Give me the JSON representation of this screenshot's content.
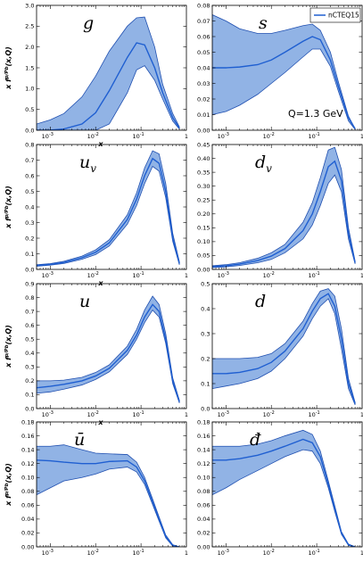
{
  "figure": {
    "legend": {
      "label": "nCTEQ15",
      "color": "#1f5fd1"
    },
    "annotation": "Q=1.3 GeV",
    "band_fill": "#7ea6e0",
    "band_edge": "#1f4fb0",
    "line_color": "#1f5fd1"
  },
  "chart_data": [
    {
      "type": "area",
      "panel": "g",
      "label": "g",
      "xlabel": "x",
      "ylabel": "x f^{p/Pb}(x,Q)",
      "xscale": "log",
      "xlim": [
        0.0005,
        1
      ],
      "ylim": [
        0,
        3.0
      ],
      "yticks": [
        0,
        0.5,
        1.0,
        1.5,
        2.0,
        2.5,
        3.0
      ],
      "yticklabels": [
        "0.0",
        "0.5",
        "1.0",
        "1.5",
        "2.0",
        "2.5",
        "3.0"
      ],
      "x": [
        0.0005,
        0.001,
        0.002,
        0.005,
        0.01,
        0.02,
        0.05,
        0.08,
        0.12,
        0.2,
        0.3,
        0.5,
        0.7
      ],
      "central": [
        0.0,
        0.005,
        0.03,
        0.15,
        0.42,
        0.95,
        1.75,
        2.1,
        2.05,
        1.5,
        0.9,
        0.3,
        0.05
      ],
      "upper": [
        0.15,
        0.25,
        0.4,
        0.8,
        1.3,
        1.9,
        2.5,
        2.7,
        2.72,
        2.0,
        1.1,
        0.4,
        0.08
      ],
      "lower": [
        0.0,
        0.0,
        0.0,
        0.0,
        0.0,
        0.15,
        0.9,
        1.45,
        1.55,
        1.2,
        0.75,
        0.22,
        0.03
      ]
    },
    {
      "type": "area",
      "panel": "s",
      "label": "s",
      "xlabel": "",
      "ylabel": "",
      "xscale": "log",
      "xlim": [
        0.0005,
        1
      ],
      "ylim": [
        0,
        0.08
      ],
      "yticks": [
        0,
        0.01,
        0.02,
        0.03,
        0.04,
        0.05,
        0.06,
        0.07,
        0.08
      ],
      "yticklabels": [
        "0.00",
        "0.01",
        "0.02",
        "0.03",
        "0.04",
        "0.05",
        "0.06",
        "0.07",
        "0.08"
      ],
      "x": [
        0.0005,
        0.001,
        0.002,
        0.005,
        0.01,
        0.02,
        0.05,
        0.08,
        0.12,
        0.2,
        0.3,
        0.5,
        0.7
      ],
      "central": [
        0.04,
        0.04,
        0.0405,
        0.042,
        0.045,
        0.05,
        0.057,
        0.06,
        0.058,
        0.045,
        0.028,
        0.008,
        0.001
      ],
      "upper": [
        0.074,
        0.07,
        0.065,
        0.062,
        0.062,
        0.064,
        0.067,
        0.068,
        0.064,
        0.05,
        0.031,
        0.009,
        0.001
      ],
      "lower": [
        0.01,
        0.012,
        0.016,
        0.023,
        0.03,
        0.037,
        0.047,
        0.052,
        0.052,
        0.041,
        0.025,
        0.006,
        0.0005
      ]
    },
    {
      "type": "area",
      "panel": "uv",
      "label": "u",
      "label_sub": "v",
      "xlabel": "x",
      "ylabel": "x f^{p/Pb}(x,Q)",
      "xscale": "log",
      "xlim": [
        0.0005,
        1
      ],
      "ylim": [
        0,
        0.8
      ],
      "yticks": [
        0,
        0.1,
        0.2,
        0.3,
        0.4,
        0.5,
        0.6,
        0.7,
        0.8
      ],
      "yticklabels": [
        "0.0",
        "0.1",
        "0.2",
        "0.3",
        "0.4",
        "0.5",
        "0.6",
        "0.7",
        "0.8"
      ],
      "x": [
        0.0005,
        0.001,
        0.002,
        0.005,
        0.01,
        0.02,
        0.05,
        0.08,
        0.12,
        0.18,
        0.25,
        0.35,
        0.5,
        0.7
      ],
      "central": [
        0.025,
        0.032,
        0.045,
        0.075,
        0.11,
        0.17,
        0.32,
        0.45,
        0.6,
        0.71,
        0.68,
        0.5,
        0.2,
        0.04
      ],
      "upper": [
        0.03,
        0.037,
        0.052,
        0.085,
        0.125,
        0.19,
        0.35,
        0.49,
        0.65,
        0.76,
        0.74,
        0.55,
        0.23,
        0.05
      ],
      "lower": [
        0.02,
        0.027,
        0.038,
        0.065,
        0.095,
        0.15,
        0.29,
        0.41,
        0.55,
        0.66,
        0.63,
        0.46,
        0.18,
        0.03
      ]
    },
    {
      "type": "area",
      "panel": "dv",
      "label": "d",
      "label_sub": "v",
      "xlabel": "",
      "ylabel": "",
      "xscale": "log",
      "xlim": [
        0.0005,
        1
      ],
      "ylim": [
        0,
        0.45
      ],
      "yticks": [
        0,
        0.05,
        0.1,
        0.15,
        0.2,
        0.25,
        0.3,
        0.35,
        0.4,
        0.45
      ],
      "yticklabels": [
        "0.00",
        "0.05",
        "0.10",
        "0.15",
        "0.20",
        "0.25",
        "0.30",
        "0.35",
        "0.40",
        "0.45"
      ],
      "x": [
        0.0005,
        0.001,
        0.002,
        0.005,
        0.01,
        0.02,
        0.05,
        0.08,
        0.12,
        0.18,
        0.25,
        0.35,
        0.5,
        0.7
      ],
      "central": [
        0.01,
        0.013,
        0.019,
        0.032,
        0.048,
        0.075,
        0.14,
        0.2,
        0.28,
        0.37,
        0.39,
        0.32,
        0.13,
        0.025
      ],
      "upper": [
        0.013,
        0.017,
        0.024,
        0.04,
        0.06,
        0.09,
        0.17,
        0.24,
        0.33,
        0.43,
        0.44,
        0.36,
        0.15,
        0.03
      ],
      "lower": [
        0.007,
        0.009,
        0.014,
        0.024,
        0.036,
        0.06,
        0.11,
        0.16,
        0.23,
        0.31,
        0.34,
        0.28,
        0.11,
        0.02
      ]
    },
    {
      "type": "area",
      "panel": "u",
      "label": "u",
      "xlabel": "x",
      "ylabel": "x f^{p/Pb}(x,Q)",
      "xscale": "log",
      "xlim": [
        0.0005,
        1
      ],
      "ylim": [
        0,
        0.9
      ],
      "yticks": [
        0,
        0.1,
        0.2,
        0.3,
        0.4,
        0.5,
        0.6,
        0.7,
        0.8,
        0.9
      ],
      "yticklabels": [
        "0.0",
        "0.1",
        "0.2",
        "0.3",
        "0.4",
        "0.5",
        "0.6",
        "0.7",
        "0.8",
        "0.9"
      ],
      "x": [
        0.0005,
        0.001,
        0.002,
        0.005,
        0.01,
        0.02,
        0.05,
        0.08,
        0.12,
        0.18,
        0.25,
        0.35,
        0.5,
        0.7
      ],
      "central": [
        0.15,
        0.16,
        0.175,
        0.2,
        0.235,
        0.29,
        0.42,
        0.53,
        0.66,
        0.75,
        0.7,
        0.5,
        0.2,
        0.05
      ],
      "upper": [
        0.2,
        0.2,
        0.205,
        0.225,
        0.26,
        0.315,
        0.45,
        0.57,
        0.71,
        0.81,
        0.75,
        0.54,
        0.22,
        0.06
      ],
      "lower": [
        0.11,
        0.12,
        0.14,
        0.17,
        0.21,
        0.265,
        0.39,
        0.5,
        0.62,
        0.71,
        0.66,
        0.47,
        0.18,
        0.04
      ]
    },
    {
      "type": "area",
      "panel": "d",
      "label": "d",
      "xlabel": "",
      "ylabel": "",
      "xscale": "log",
      "xlim": [
        0.0005,
        1
      ],
      "ylim": [
        0,
        0.5
      ],
      "yticks": [
        0,
        0.1,
        0.2,
        0.3,
        0.4,
        0.5
      ],
      "yticklabels": [
        "0.0",
        "0.1",
        "0.2",
        "0.3",
        "0.4",
        "0.5"
      ],
      "x": [
        0.0005,
        0.001,
        0.002,
        0.005,
        0.01,
        0.02,
        0.05,
        0.08,
        0.12,
        0.18,
        0.25,
        0.35,
        0.5,
        0.7
      ],
      "central": [
        0.14,
        0.14,
        0.145,
        0.16,
        0.185,
        0.23,
        0.32,
        0.39,
        0.44,
        0.46,
        0.41,
        0.28,
        0.1,
        0.02
      ],
      "upper": [
        0.2,
        0.2,
        0.2,
        0.205,
        0.22,
        0.26,
        0.35,
        0.42,
        0.47,
        0.48,
        0.45,
        0.32,
        0.12,
        0.025
      ],
      "lower": [
        0.08,
        0.09,
        0.1,
        0.12,
        0.15,
        0.2,
        0.29,
        0.36,
        0.41,
        0.44,
        0.38,
        0.24,
        0.08,
        0.015
      ]
    },
    {
      "type": "area",
      "panel": "ubar",
      "label": "ū",
      "xlabel": "x",
      "ylabel": "x f^{p/Pb}(x,Q)",
      "xscale": "log",
      "xlim": [
        0.0005,
        1
      ],
      "ylim": [
        0,
        0.18
      ],
      "yticks": [
        0,
        0.02,
        0.04,
        0.06,
        0.08,
        0.1,
        0.12,
        0.14,
        0.16,
        0.18
      ],
      "yticklabels": [
        "0.00",
        "0.02",
        "0.04",
        "0.06",
        "0.08",
        "0.10",
        "0.12",
        "0.14",
        "0.16",
        "0.18"
      ],
      "x": [
        0.0005,
        0.001,
        0.002,
        0.005,
        0.01,
        0.02,
        0.05,
        0.08,
        0.12,
        0.18,
        0.25,
        0.35,
        0.5,
        0.7
      ],
      "central": [
        0.125,
        0.124,
        0.122,
        0.12,
        0.12,
        0.123,
        0.124,
        0.115,
        0.095,
        0.065,
        0.04,
        0.015,
        0.002,
        0.0
      ],
      "upper": [
        0.145,
        0.145,
        0.147,
        0.14,
        0.135,
        0.134,
        0.133,
        0.122,
        0.1,
        0.069,
        0.043,
        0.017,
        0.003,
        0.0
      ],
      "lower": [
        0.075,
        0.085,
        0.095,
        0.1,
        0.105,
        0.112,
        0.115,
        0.108,
        0.09,
        0.061,
        0.037,
        0.013,
        0.001,
        0.0
      ]
    },
    {
      "type": "area",
      "panel": "dbar",
      "label": "đ",
      "xlabel": "x",
      "ylabel": "",
      "xscale": "log",
      "xlim": [
        0.0005,
        1
      ],
      "ylim": [
        0,
        0.18
      ],
      "yticks": [
        0,
        0.02,
        0.04,
        0.06,
        0.08,
        0.1,
        0.12,
        0.14,
        0.16,
        0.18
      ],
      "yticklabels": [
        "0.00",
        "0.02",
        "0.04",
        "0.06",
        "0.08",
        "0.10",
        "0.12",
        "0.14",
        "0.16",
        "0.18"
      ],
      "x": [
        0.0005,
        0.001,
        0.002,
        0.005,
        0.01,
        0.02,
        0.05,
        0.08,
        0.12,
        0.18,
        0.25,
        0.35,
        0.5,
        0.7
      ],
      "central": [
        0.125,
        0.125,
        0.127,
        0.132,
        0.138,
        0.145,
        0.155,
        0.15,
        0.13,
        0.09,
        0.055,
        0.02,
        0.003,
        0.0
      ],
      "upper": [
        0.145,
        0.145,
        0.145,
        0.148,
        0.153,
        0.16,
        0.168,
        0.162,
        0.138,
        0.095,
        0.059,
        0.022,
        0.004,
        0.0
      ],
      "lower": [
        0.075,
        0.085,
        0.097,
        0.11,
        0.12,
        0.13,
        0.14,
        0.138,
        0.12,
        0.085,
        0.051,
        0.018,
        0.002,
        0.0
      ]
    }
  ]
}
